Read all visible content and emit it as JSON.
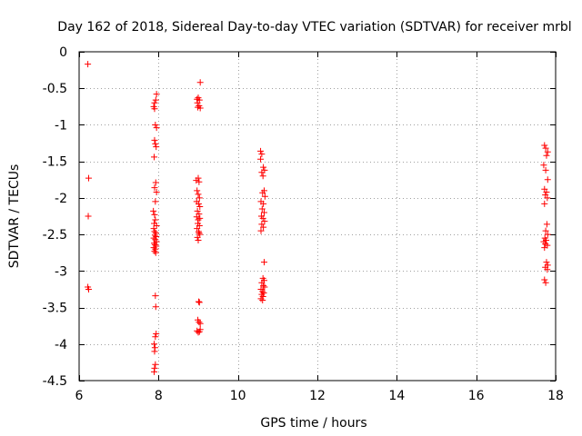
{
  "chart_data": {
    "type": "scatter",
    "title": "Day 162 of 2018, Sidereal Day-to-day VTEC variation (SDTVAR) for receiver mrbl",
    "xlabel": "GPS time / hours",
    "ylabel": "SDTVAR / TECUs",
    "xlim": [
      6,
      18
    ],
    "ylim": [
      -4.5,
      0
    ],
    "xticks": [
      6,
      8,
      10,
      12,
      14,
      16,
      18
    ],
    "xtick_labels": [
      "6",
      "8",
      "10",
      "12",
      "14",
      "16",
      "18"
    ],
    "yticks": [
      0,
      -0.5,
      -1,
      -1.5,
      -2,
      -2.5,
      -3,
      -3.5,
      -4,
      -4.5
    ],
    "ytick_labels": [
      "0",
      "-0.5",
      "-1",
      "-1.5",
      "-2",
      "-2.5",
      "-3",
      "-3.5",
      "-4",
      "-4.5"
    ],
    "grid": true,
    "marker": "+",
    "series": [
      {
        "name": "SDTVAR",
        "color": "#ff0000",
        "points": [
          [
            6.22,
            -0.17
          ],
          [
            6.24,
            -1.73
          ],
          [
            6.23,
            -2.25
          ],
          [
            6.22,
            -3.22
          ],
          [
            6.24,
            -3.25
          ],
          [
            7.88,
            -0.75
          ],
          [
            7.9,
            -0.7
          ],
          [
            7.93,
            -0.66
          ],
          [
            7.95,
            -0.58
          ],
          [
            7.9,
            -0.78
          ],
          [
            7.92,
            -1.0
          ],
          [
            7.95,
            -1.04
          ],
          [
            7.9,
            -1.21
          ],
          [
            7.92,
            -1.26
          ],
          [
            7.94,
            -1.3
          ],
          [
            7.89,
            -1.44
          ],
          [
            7.93,
            -1.79
          ],
          [
            7.9,
            -1.86
          ],
          [
            7.95,
            -1.92
          ],
          [
            7.92,
            -2.05
          ],
          [
            7.87,
            -2.18
          ],
          [
            7.9,
            -2.23
          ],
          [
            7.92,
            -2.3
          ],
          [
            7.89,
            -2.35
          ],
          [
            7.95,
            -2.38
          ],
          [
            7.88,
            -2.42
          ],
          [
            7.9,
            -2.46
          ],
          [
            7.93,
            -2.48
          ],
          [
            7.91,
            -2.51
          ],
          [
            7.94,
            -2.53
          ],
          [
            7.88,
            -2.55
          ],
          [
            7.92,
            -2.57
          ],
          [
            7.95,
            -2.6
          ],
          [
            7.89,
            -2.62
          ],
          [
            7.91,
            -2.64
          ],
          [
            7.94,
            -2.66
          ],
          [
            7.88,
            -2.68
          ],
          [
            7.92,
            -2.7
          ],
          [
            7.9,
            -2.73
          ],
          [
            7.93,
            -2.75
          ],
          [
            7.92,
            -3.34
          ],
          [
            7.93,
            -3.49
          ],
          [
            7.94,
            -3.86
          ],
          [
            7.92,
            -3.9
          ],
          [
            7.89,
            -4.0
          ],
          [
            7.91,
            -4.05
          ],
          [
            7.9,
            -4.1
          ],
          [
            7.92,
            -4.28
          ],
          [
            7.9,
            -4.33
          ],
          [
            7.89,
            -4.38
          ],
          [
            9.05,
            -0.42
          ],
          [
            8.97,
            -0.65
          ],
          [
            9.0,
            -0.63
          ],
          [
            9.03,
            -0.66
          ],
          [
            8.98,
            -0.7
          ],
          [
            9.02,
            -0.74
          ],
          [
            9.05,
            -0.77
          ],
          [
            8.99,
            -0.76
          ],
          [
            8.95,
            -1.76
          ],
          [
            9.0,
            -1.73
          ],
          [
            9.02,
            -1.78
          ],
          [
            8.97,
            -1.9
          ],
          [
            9.0,
            -1.95
          ],
          [
            9.03,
            -2.0
          ],
          [
            8.96,
            -2.05
          ],
          [
            9.01,
            -2.08
          ],
          [
            9.04,
            -2.12
          ],
          [
            8.98,
            -2.18
          ],
          [
            9.02,
            -2.22
          ],
          [
            8.96,
            -2.26
          ],
          [
            9.0,
            -2.3
          ],
          [
            9.04,
            -2.28
          ],
          [
            8.99,
            -2.35
          ],
          [
            9.03,
            -2.38
          ],
          [
            8.97,
            -2.42
          ],
          [
            9.01,
            -2.46
          ],
          [
            9.04,
            -2.5
          ],
          [
            8.98,
            -2.54
          ],
          [
            9.0,
            -2.58
          ],
          [
            9.02,
            -2.48
          ],
          [
            9.01,
            -3.42
          ],
          [
            9.03,
            -3.43
          ],
          [
            8.99,
            -3.67
          ],
          [
            9.02,
            -3.7
          ],
          [
            9.05,
            -3.72
          ],
          [
            8.97,
            -3.82
          ],
          [
            9.0,
            -3.84
          ],
          [
            9.03,
            -3.83
          ],
          [
            9.05,
            -3.8
          ],
          [
            10.57,
            -1.36
          ],
          [
            10.6,
            -1.4
          ],
          [
            10.57,
            -1.47
          ],
          [
            10.64,
            -1.58
          ],
          [
            10.67,
            -1.62
          ],
          [
            10.6,
            -1.65
          ],
          [
            10.63,
            -1.7
          ],
          [
            10.66,
            -1.9
          ],
          [
            10.62,
            -1.93
          ],
          [
            10.68,
            -1.98
          ],
          [
            10.58,
            -2.05
          ],
          [
            10.64,
            -2.08
          ],
          [
            10.61,
            -2.15
          ],
          [
            10.66,
            -2.2
          ],
          [
            10.59,
            -2.25
          ],
          [
            10.63,
            -2.28
          ],
          [
            10.67,
            -2.32
          ],
          [
            10.6,
            -2.36
          ],
          [
            10.64,
            -2.4
          ],
          [
            10.58,
            -2.45
          ],
          [
            10.66,
            -2.88
          ],
          [
            10.63,
            -3.1
          ],
          [
            10.66,
            -3.13
          ],
          [
            10.6,
            -3.16
          ],
          [
            10.64,
            -3.2
          ],
          [
            10.67,
            -3.22
          ],
          [
            10.58,
            -3.25
          ],
          [
            10.62,
            -3.28
          ],
          [
            10.65,
            -3.3
          ],
          [
            10.6,
            -3.32
          ],
          [
            10.63,
            -3.35
          ],
          [
            10.58,
            -3.38
          ],
          [
            10.62,
            -3.4
          ],
          [
            17.72,
            -1.28
          ],
          [
            17.75,
            -1.32
          ],
          [
            17.8,
            -1.37
          ],
          [
            17.77,
            -1.42
          ],
          [
            17.7,
            -1.55
          ],
          [
            17.75,
            -1.62
          ],
          [
            17.8,
            -1.75
          ],
          [
            17.72,
            -1.88
          ],
          [
            17.77,
            -1.92
          ],
          [
            17.74,
            -1.96
          ],
          [
            17.79,
            -2.0
          ],
          [
            17.72,
            -2.08
          ],
          [
            17.78,
            -2.36
          ],
          [
            17.75,
            -2.45
          ],
          [
            17.8,
            -2.5
          ],
          [
            17.73,
            -2.55
          ],
          [
            17.76,
            -2.58
          ],
          [
            17.7,
            -2.6
          ],
          [
            17.74,
            -2.63
          ],
          [
            17.79,
            -2.65
          ],
          [
            17.72,
            -2.68
          ],
          [
            17.77,
            -2.88
          ],
          [
            17.8,
            -2.92
          ],
          [
            17.74,
            -2.95
          ],
          [
            17.79,
            -2.98
          ],
          [
            17.72,
            -3.12
          ],
          [
            17.75,
            -3.16
          ]
        ]
      }
    ]
  }
}
